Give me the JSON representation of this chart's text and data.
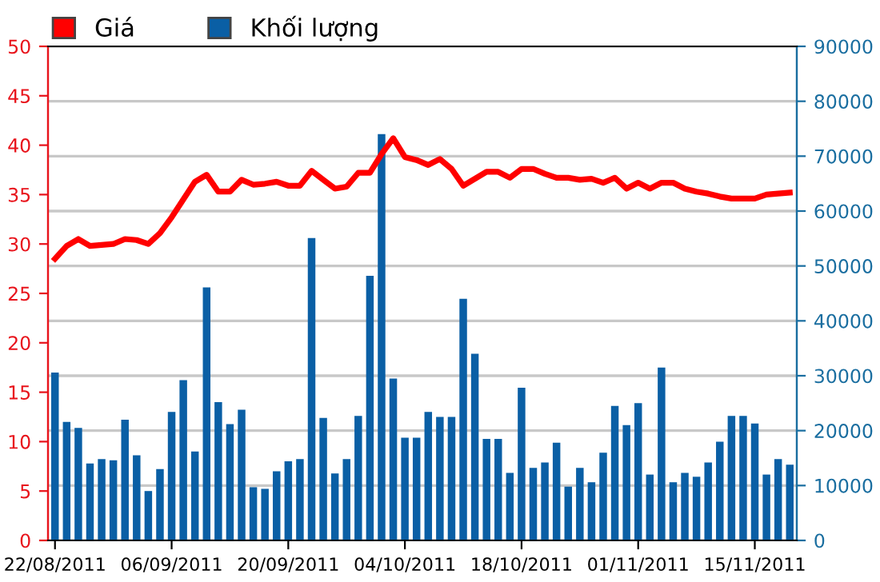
{
  "chart_data": {
    "type": "bar",
    "categories": [
      "22/08/2011",
      null,
      null,
      null,
      null,
      null,
      null,
      null,
      null,
      null,
      "06/09/2011",
      null,
      null,
      null,
      null,
      null,
      null,
      null,
      null,
      null,
      "20/09/2011",
      null,
      null,
      null,
      null,
      null,
      null,
      null,
      null,
      null,
      "04/10/2011",
      null,
      null,
      null,
      null,
      null,
      null,
      null,
      null,
      null,
      "18/10/2011",
      null,
      null,
      null,
      null,
      null,
      null,
      null,
      null,
      null,
      "01/11/2011",
      null,
      null,
      null,
      null,
      null,
      null,
      null,
      null,
      null,
      "15/11/2011",
      null,
      null,
      null
    ],
    "series": [
      {
        "name": "Khối lượng",
        "axis": "y2",
        "color": "#0a5fa5",
        "values": [
          30600,
          21600,
          20500,
          14000,
          14800,
          14600,
          22000,
          15500,
          9000,
          13000,
          23400,
          29200,
          16200,
          46100,
          25200,
          21200,
          23800,
          9700,
          9400,
          12600,
          14400,
          14800,
          55100,
          22300,
          12200,
          14800,
          22700,
          48200,
          74000,
          29500,
          18700,
          18700,
          23400,
          22500,
          22500,
          44000,
          34000,
          18500,
          18500,
          12300,
          27800,
          13200,
          14200,
          17800,
          9800,
          13200,
          10600,
          16000,
          24500,
          21000,
          25000,
          12000,
          31500,
          10600,
          12300,
          11600,
          14200,
          18000,
          22700,
          22700,
          21300,
          12000,
          14800,
          13800
        ]
      },
      {
        "name": "Giá",
        "type": "line",
        "axis": "y",
        "color": "#ff0000",
        "values": [
          28.5,
          29.8,
          30.5,
          29.8,
          29.9,
          30.0,
          30.5,
          30.4,
          30.0,
          31.1,
          32.7,
          34.5,
          36.3,
          37.0,
          35.3,
          35.3,
          36.5,
          36.0,
          36.1,
          36.3,
          35.9,
          35.9,
          37.4,
          36.5,
          35.6,
          35.8,
          37.2,
          37.2,
          39.1,
          40.7,
          38.8,
          38.5,
          38.0,
          38.6,
          37.6,
          35.9,
          36.6,
          37.3,
          37.3,
          36.7,
          37.6,
          37.6,
          37.1,
          36.7,
          36.7,
          36.5,
          36.6,
          36.2,
          36.7,
          35.6,
          36.2,
          35.6,
          36.2,
          36.2,
          35.6,
          35.3,
          35.1,
          34.8,
          34.6,
          34.6,
          34.6,
          35.0,
          35.1,
          35.2
        ]
      }
    ],
    "ylim": [
      0,
      50
    ],
    "yticks": [
      0,
      5,
      10,
      15,
      20,
      25,
      30,
      35,
      40,
      45,
      50
    ],
    "y2lim": [
      0,
      90000
    ],
    "y2ticks": [
      0,
      10000,
      20000,
      30000,
      40000,
      50000,
      60000,
      70000,
      80000,
      90000
    ],
    "grid": "y",
    "legend": "top left",
    "marker": "none",
    "line_style": "solid"
  }
}
